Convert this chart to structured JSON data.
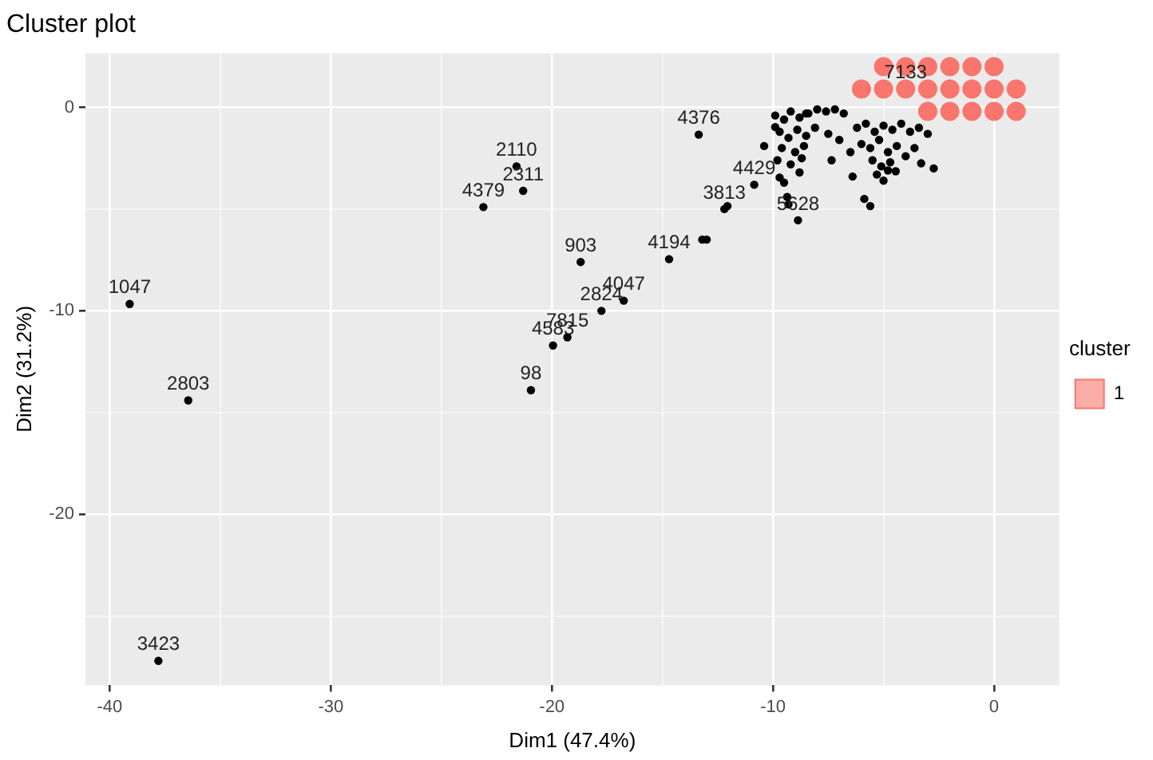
{
  "chart_data": {
    "type": "scatter",
    "title": "Cluster plot",
    "xlabel": "Dim1 (47.4%)",
    "ylabel": "Dim2 (31.2%)",
    "legend_title": "cluster",
    "legend": "right",
    "grid": true,
    "marker": "circle",
    "xlim": [
      -41.1,
      2.95
    ],
    "ylim": [
      -28.4,
      2.67
    ],
    "xticks": [
      -40,
      {
        "value": -35,
        "label": null
      },
      -30,
      {
        "value": -25,
        "label": null
      },
      -20,
      {
        "value": -15,
        "label": null
      },
      -10,
      {
        "value": -5,
        "label": null
      },
      0
    ],
    "yticks": [
      {
        "value": -25,
        "label": null
      },
      -20,
      {
        "value": -15,
        "label": null
      },
      -10,
      {
        "value": -5,
        "label": null
      },
      0
    ],
    "series": [
      {
        "name": "1",
        "color": "#f8766d",
        "x": [
          -5,
          -4,
          -3,
          -2,
          -1,
          0,
          -6,
          -5,
          -4,
          -3,
          -2,
          -1,
          0,
          1,
          -3,
          -2,
          -1,
          0,
          1
        ],
        "values": [
          2.0,
          2.0,
          2.0,
          2.0,
          2.0,
          2.0,
          0.9,
          0.9,
          0.9,
          0.9,
          0.9,
          0.9,
          0.9,
          0.9,
          -0.2,
          -0.2,
          -0.2,
          -0.2,
          -0.2
        ]
      },
      {
        "color": "#000000",
        "x": [
          -39.1,
          -36.45,
          -37.8,
          -20.95,
          -23.1,
          -21.6,
          -21.3,
          -18.7,
          -16.75,
          -17.76,
          -19.3,
          -19.95,
          -14.7,
          -13.36,
          -13.2,
          -13.0,
          -10.85,
          -12.2,
          -12.06,
          -8.87,
          -9.3,
          -9.36,
          -10.4,
          -9.5,
          -9.7,
          -8.8,
          -9.9,
          -7.35,
          -6.4,
          -5.87,
          -5.6,
          -4.45,
          -3.3,
          -2.73,
          -8.5,
          -9.9,
          -9.5,
          -9.2,
          -8.8,
          -8.4,
          -8.0,
          -7.6,
          -7.2,
          -6.8,
          -9.7,
          -9.3,
          -8.9,
          -8.5,
          -8.1,
          -9.6,
          -9.0,
          -8.6,
          -9.8,
          -9.2,
          -8.7,
          -6.2,
          -5.8,
          -5.4,
          -5.0,
          -4.6,
          -4.2,
          -3.8,
          -3.4,
          -3.0,
          -6.0,
          -5.6,
          -5.2,
          -4.8,
          -4.4,
          -4.0,
          -3.6,
          -5.5,
          -5.1,
          -4.7,
          -6.5,
          -7.0,
          -7.5,
          -5.3,
          -5.0,
          -4.8
        ],
        "values": [
          -9.66,
          -14.4,
          -27.2,
          -13.9,
          -4.9,
          -2.9,
          -4.1,
          -7.6,
          -9.5,
          -10.0,
          -11.3,
          -11.7,
          -7.46,
          -1.34,
          -6.5,
          -6.5,
          -3.8,
          -5.0,
          -4.85,
          -5.55,
          -4.77,
          -4.4,
          -1.9,
          -3.7,
          -3.45,
          -3.2,
          -0.97,
          -2.6,
          -3.4,
          -4.5,
          -4.85,
          -3.14,
          -2.75,
          -3.0,
          -0.3,
          -0.4,
          -0.6,
          -0.2,
          -0.5,
          -0.3,
          -0.1,
          -0.2,
          -0.1,
          -0.3,
          -1.2,
          -1.5,
          -1.1,
          -1.4,
          -1.0,
          -2.0,
          -2.2,
          -1.9,
          -2.6,
          -2.8,
          -2.5,
          -1.0,
          -0.8,
          -1.2,
          -0.9,
          -1.1,
          -0.8,
          -1.2,
          -1.0,
          -1.3,
          -1.8,
          -2.0,
          -1.6,
          -2.2,
          -1.9,
          -2.4,
          -2.0,
          -2.6,
          -2.9,
          -2.7,
          -2.2,
          -1.6,
          -1.3,
          -3.3,
          -3.6,
          -3.1
        ]
      }
    ],
    "annotations": [
      {
        "text": "1047",
        "x": -39.1,
        "y": -9.66
      },
      {
        "text": "2803",
        "x": -36.45,
        "y": -14.4
      },
      {
        "text": "3423",
        "x": -37.8,
        "y": -27.2
      },
      {
        "text": "98",
        "x": -20.95,
        "y": -13.9
      },
      {
        "text": "4379",
        "x": -23.1,
        "y": -4.9
      },
      {
        "text": "2110",
        "x": -21.6,
        "y": -2.9
      },
      {
        "text": "2311",
        "x": -21.3,
        "y": -4.1
      },
      {
        "text": "903",
        "x": -18.7,
        "y": -7.6
      },
      {
        "text": "4047",
        "x": -16.75,
        "y": -9.5
      },
      {
        "text": "2824",
        "x": -17.76,
        "y": -10.0
      },
      {
        "text": "7815",
        "x": -19.3,
        "y": -11.3
      },
      {
        "text": "4583",
        "x": -19.95,
        "y": -11.7
      },
      {
        "text": "4194",
        "x": -14.7,
        "y": -7.46
      },
      {
        "text": "4376",
        "x": -13.36,
        "y": -1.34
      },
      {
        "text": "4429",
        "x": -10.85,
        "y": -3.8
      },
      {
        "text": "3813",
        "x": -12.2,
        "y": -5.0
      },
      {
        "text": "5628",
        "x": -8.87,
        "y": -5.55
      },
      {
        "text": "7133",
        "x": -4,
        "y": 0.9
      }
    ]
  }
}
